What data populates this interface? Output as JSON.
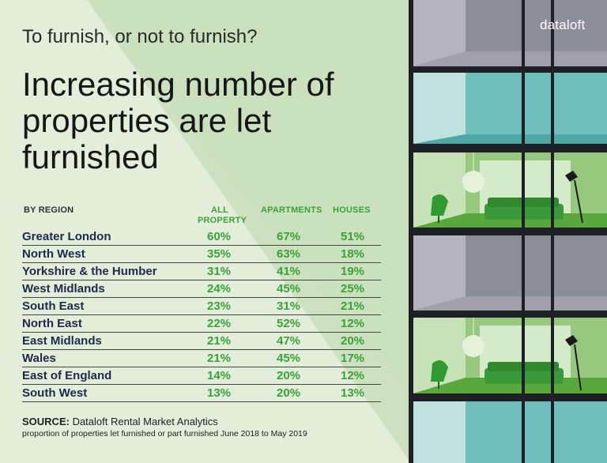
{
  "header": {
    "subtitle": "To furnish, or not to furnish?",
    "headline": "Increasing number of properties are let furnished"
  },
  "brand": {
    "logo": "dataloft"
  },
  "table": {
    "headers": {
      "region": "BY REGION",
      "all_line1": "ALL",
      "all_line2": "PROPERTY",
      "apartments": "APARTMENTS",
      "houses": "HOUSES"
    },
    "rows": [
      {
        "region": "Greater London",
        "all": "60%",
        "apartments": "67%",
        "houses": "51%"
      },
      {
        "region": "North West",
        "all": "35%",
        "apartments": "63%",
        "houses": "18%"
      },
      {
        "region": "Yorkshire & the Humber",
        "all": "31%",
        "apartments": "41%",
        "houses": "19%"
      },
      {
        "region": "West Midlands",
        "all": "24%",
        "apartments": "45%",
        "houses": "25%"
      },
      {
        "region": "South East",
        "all": "23%",
        "apartments": "31%",
        "houses": "21%"
      },
      {
        "region": "North East",
        "all": "22%",
        "apartments": "52%",
        "houses": "12%"
      },
      {
        "region": "East Midlands",
        "all": "21%",
        "apartments": "47%",
        "houses": "20%"
      },
      {
        "region": "Wales",
        "all": "21%",
        "apartments": "45%",
        "houses": "17%"
      },
      {
        "region": "East of England",
        "all": "14%",
        "apartments": "20%",
        "houses": "12%"
      },
      {
        "region": "South West",
        "all": "13%",
        "apartments": "20%",
        "houses": "13%"
      }
    ]
  },
  "footer": {
    "source_label": "SOURCE:",
    "source_text": " Dataloft Rental Market Analytics",
    "note": "proportion of properties let furnished or part furnished June 2018 to May 2019"
  },
  "colors": {
    "accent_green": "#39a239",
    "background_light": "#e3eedd",
    "background_diagonal": "#cfe2c2",
    "region_text": "#1f2a4a"
  },
  "icons": [
    "chair-icon",
    "sofa-icon",
    "floor-lamp-icon",
    "pendant-lamp-icon"
  ]
}
